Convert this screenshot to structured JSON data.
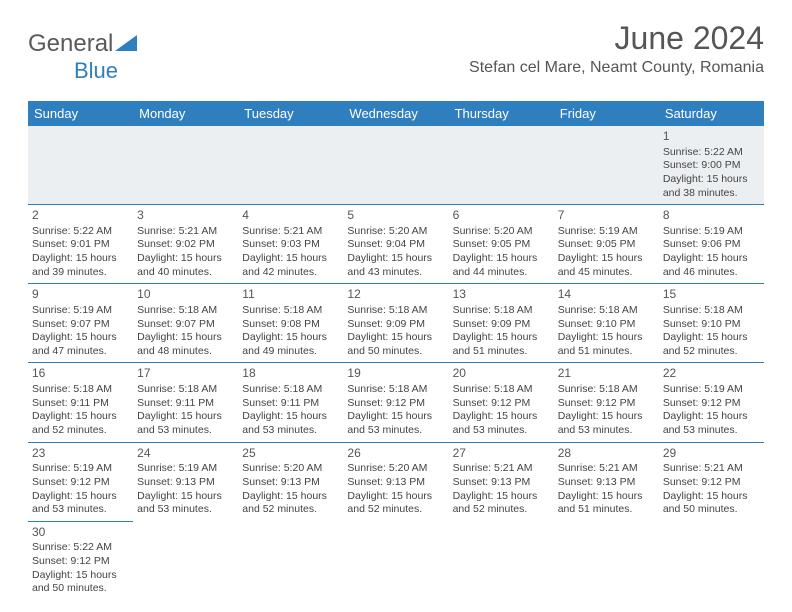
{
  "logo": {
    "part1": "General",
    "part2": "Blue"
  },
  "title": "June 2024",
  "location": "Stefan cel Mare, Neamt County, Romania",
  "colors": {
    "header_bg": "#2f7fbf",
    "header_text": "#ffffff",
    "day_border": "#2f7fbf",
    "text": "#444444",
    "title_text": "#555555",
    "firstrow_bg": "#eceff2"
  },
  "daynames": [
    "Sunday",
    "Monday",
    "Tuesday",
    "Wednesday",
    "Thursday",
    "Friday",
    "Saturday"
  ],
  "weeks": [
    [
      null,
      null,
      null,
      null,
      null,
      null,
      {
        "n": "1",
        "sr": "Sunrise: 5:22 AM",
        "ss": "Sunset: 9:00 PM",
        "dl1": "Daylight: 15 hours",
        "dl2": "and 38 minutes."
      }
    ],
    [
      {
        "n": "2",
        "sr": "Sunrise: 5:22 AM",
        "ss": "Sunset: 9:01 PM",
        "dl1": "Daylight: 15 hours",
        "dl2": "and 39 minutes."
      },
      {
        "n": "3",
        "sr": "Sunrise: 5:21 AM",
        "ss": "Sunset: 9:02 PM",
        "dl1": "Daylight: 15 hours",
        "dl2": "and 40 minutes."
      },
      {
        "n": "4",
        "sr": "Sunrise: 5:21 AM",
        "ss": "Sunset: 9:03 PM",
        "dl1": "Daylight: 15 hours",
        "dl2": "and 42 minutes."
      },
      {
        "n": "5",
        "sr": "Sunrise: 5:20 AM",
        "ss": "Sunset: 9:04 PM",
        "dl1": "Daylight: 15 hours",
        "dl2": "and 43 minutes."
      },
      {
        "n": "6",
        "sr": "Sunrise: 5:20 AM",
        "ss": "Sunset: 9:05 PM",
        "dl1": "Daylight: 15 hours",
        "dl2": "and 44 minutes."
      },
      {
        "n": "7",
        "sr": "Sunrise: 5:19 AM",
        "ss": "Sunset: 9:05 PM",
        "dl1": "Daylight: 15 hours",
        "dl2": "and 45 minutes."
      },
      {
        "n": "8",
        "sr": "Sunrise: 5:19 AM",
        "ss": "Sunset: 9:06 PM",
        "dl1": "Daylight: 15 hours",
        "dl2": "and 46 minutes."
      }
    ],
    [
      {
        "n": "9",
        "sr": "Sunrise: 5:19 AM",
        "ss": "Sunset: 9:07 PM",
        "dl1": "Daylight: 15 hours",
        "dl2": "and 47 minutes."
      },
      {
        "n": "10",
        "sr": "Sunrise: 5:18 AM",
        "ss": "Sunset: 9:07 PM",
        "dl1": "Daylight: 15 hours",
        "dl2": "and 48 minutes."
      },
      {
        "n": "11",
        "sr": "Sunrise: 5:18 AM",
        "ss": "Sunset: 9:08 PM",
        "dl1": "Daylight: 15 hours",
        "dl2": "and 49 minutes."
      },
      {
        "n": "12",
        "sr": "Sunrise: 5:18 AM",
        "ss": "Sunset: 9:09 PM",
        "dl1": "Daylight: 15 hours",
        "dl2": "and 50 minutes."
      },
      {
        "n": "13",
        "sr": "Sunrise: 5:18 AM",
        "ss": "Sunset: 9:09 PM",
        "dl1": "Daylight: 15 hours",
        "dl2": "and 51 minutes."
      },
      {
        "n": "14",
        "sr": "Sunrise: 5:18 AM",
        "ss": "Sunset: 9:10 PM",
        "dl1": "Daylight: 15 hours",
        "dl2": "and 51 minutes."
      },
      {
        "n": "15",
        "sr": "Sunrise: 5:18 AM",
        "ss": "Sunset: 9:10 PM",
        "dl1": "Daylight: 15 hours",
        "dl2": "and 52 minutes."
      }
    ],
    [
      {
        "n": "16",
        "sr": "Sunrise: 5:18 AM",
        "ss": "Sunset: 9:11 PM",
        "dl1": "Daylight: 15 hours",
        "dl2": "and 52 minutes."
      },
      {
        "n": "17",
        "sr": "Sunrise: 5:18 AM",
        "ss": "Sunset: 9:11 PM",
        "dl1": "Daylight: 15 hours",
        "dl2": "and 53 minutes."
      },
      {
        "n": "18",
        "sr": "Sunrise: 5:18 AM",
        "ss": "Sunset: 9:11 PM",
        "dl1": "Daylight: 15 hours",
        "dl2": "and 53 minutes."
      },
      {
        "n": "19",
        "sr": "Sunrise: 5:18 AM",
        "ss": "Sunset: 9:12 PM",
        "dl1": "Daylight: 15 hours",
        "dl2": "and 53 minutes."
      },
      {
        "n": "20",
        "sr": "Sunrise: 5:18 AM",
        "ss": "Sunset: 9:12 PM",
        "dl1": "Daylight: 15 hours",
        "dl2": "and 53 minutes."
      },
      {
        "n": "21",
        "sr": "Sunrise: 5:18 AM",
        "ss": "Sunset: 9:12 PM",
        "dl1": "Daylight: 15 hours",
        "dl2": "and 53 minutes."
      },
      {
        "n": "22",
        "sr": "Sunrise: 5:19 AM",
        "ss": "Sunset: 9:12 PM",
        "dl1": "Daylight: 15 hours",
        "dl2": "and 53 minutes."
      }
    ],
    [
      {
        "n": "23",
        "sr": "Sunrise: 5:19 AM",
        "ss": "Sunset: 9:12 PM",
        "dl1": "Daylight: 15 hours",
        "dl2": "and 53 minutes."
      },
      {
        "n": "24",
        "sr": "Sunrise: 5:19 AM",
        "ss": "Sunset: 9:13 PM",
        "dl1": "Daylight: 15 hours",
        "dl2": "and 53 minutes."
      },
      {
        "n": "25",
        "sr": "Sunrise: 5:20 AM",
        "ss": "Sunset: 9:13 PM",
        "dl1": "Daylight: 15 hours",
        "dl2": "and 52 minutes."
      },
      {
        "n": "26",
        "sr": "Sunrise: 5:20 AM",
        "ss": "Sunset: 9:13 PM",
        "dl1": "Daylight: 15 hours",
        "dl2": "and 52 minutes."
      },
      {
        "n": "27",
        "sr": "Sunrise: 5:21 AM",
        "ss": "Sunset: 9:13 PM",
        "dl1": "Daylight: 15 hours",
        "dl2": "and 52 minutes."
      },
      {
        "n": "28",
        "sr": "Sunrise: 5:21 AM",
        "ss": "Sunset: 9:13 PM",
        "dl1": "Daylight: 15 hours",
        "dl2": "and 51 minutes."
      },
      {
        "n": "29",
        "sr": "Sunrise: 5:21 AM",
        "ss": "Sunset: 9:12 PM",
        "dl1": "Daylight: 15 hours",
        "dl2": "and 50 minutes."
      }
    ],
    [
      {
        "n": "30",
        "sr": "Sunrise: 5:22 AM",
        "ss": "Sunset: 9:12 PM",
        "dl1": "Daylight: 15 hours",
        "dl2": "and 50 minutes."
      },
      null,
      null,
      null,
      null,
      null,
      null
    ]
  ]
}
